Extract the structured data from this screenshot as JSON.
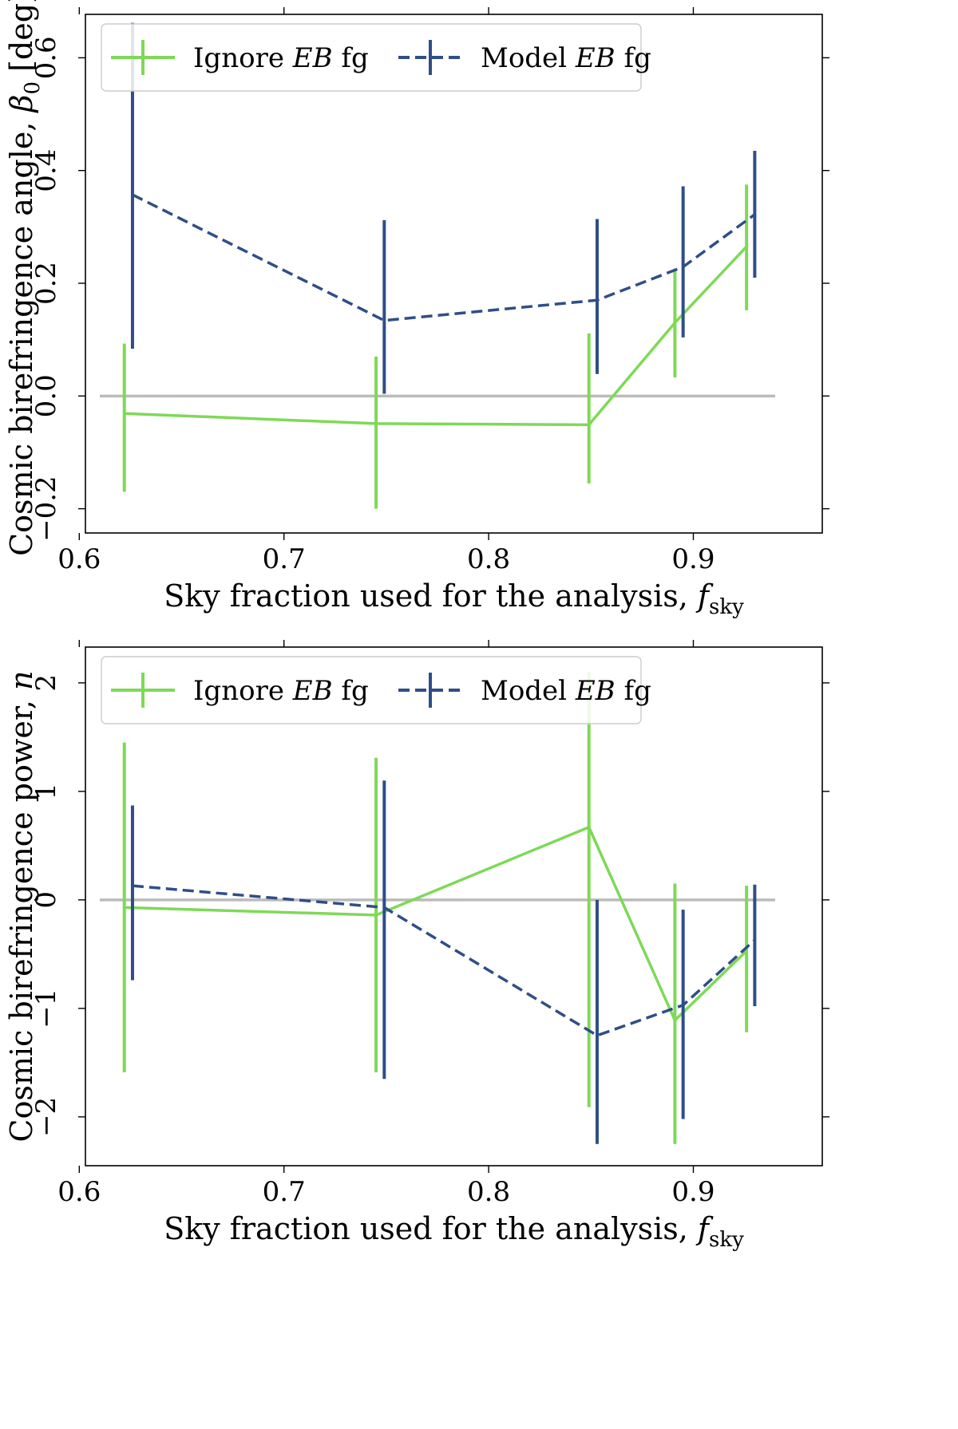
{
  "chart_data": [
    {
      "type": "line",
      "ylabel_pre": "Cosmic birefringence angle, ",
      "ylabel_sym": "β",
      "ylabel_sub": "0",
      "ylabel_post": " [deg]",
      "xlabel_pre": "Sky fraction used for the analysis, ",
      "xlabel_sym": "f",
      "xlabel_sub": "sky",
      "xlim": [
        0.603,
        0.963
      ],
      "ylim": [
        -0.243,
        0.677
      ],
      "xticks": [
        0.6,
        0.7,
        0.8,
        0.9
      ],
      "xtick_labels": [
        "0.6",
        "0.7",
        "0.8",
        "0.9"
      ],
      "yticks": [
        -0.2,
        0.0,
        0.2,
        0.4,
        0.6
      ],
      "ytick_labels": [
        "−0.2",
        "0.0",
        "0.2",
        "0.4",
        "0.6"
      ],
      "reference_line": {
        "y": 0.0,
        "x_range": [
          0.61,
          0.94
        ],
        "color": "#bbbbbb"
      },
      "legend_position": "top-left",
      "series": [
        {
          "name_pre": "Ignore ",
          "name_em": "EB",
          "name_post": " fg",
          "color": "#7ed957",
          "linestyle": "solid",
          "x": [
            0.622,
            0.745,
            0.849,
            0.891,
            0.926
          ],
          "y": [
            -0.031,
            -0.049,
            -0.051,
            0.13,
            0.265
          ],
          "yerr_low": [
            0.139,
            0.151,
            0.104,
            0.097,
            0.113
          ],
          "yerr_high": [
            0.124,
            0.119,
            0.162,
            0.096,
            0.11
          ]
        },
        {
          "name_pre": "Model ",
          "name_em": "EB",
          "name_post": " fg",
          "color": "#2f4e87",
          "linestyle": "dashed",
          "x": [
            0.626,
            0.749,
            0.853,
            0.895,
            0.93
          ],
          "y": [
            0.357,
            0.134,
            0.17,
            0.229,
            0.322
          ],
          "yerr_low": [
            0.273,
            0.13,
            0.131,
            0.125,
            0.112
          ],
          "yerr_high": [
            0.305,
            0.178,
            0.144,
            0.143,
            0.113
          ]
        }
      ]
    },
    {
      "type": "line",
      "ylabel_pre": "Cosmic birefringence power, ",
      "ylabel_sym": "n",
      "ylabel_sub": "",
      "ylabel_post": "",
      "xlabel_pre": "Sky fraction used for the analysis, ",
      "xlabel_sym": "f",
      "xlabel_sub": "sky",
      "xlim": [
        0.603,
        0.963
      ],
      "ylim": [
        -2.45,
        2.33
      ],
      "xticks": [
        0.6,
        0.7,
        0.8,
        0.9
      ],
      "xtick_labels": [
        "0.6",
        "0.7",
        "0.8",
        "0.9"
      ],
      "yticks": [
        -2,
        -1,
        0,
        1,
        2
      ],
      "ytick_labels": [
        "−2",
        "−1",
        "0",
        "1",
        "2"
      ],
      "reference_line": {
        "y": 0.0,
        "x_range": [
          0.61,
          0.94
        ],
        "color": "#bbbbbb"
      },
      "legend_position": "top-left",
      "series": [
        {
          "name_pre": "Ignore ",
          "name_em": "EB",
          "name_post": " fg",
          "color": "#7ed957",
          "linestyle": "solid",
          "x": [
            0.622,
            0.745,
            0.849,
            0.891,
            0.926
          ],
          "y": [
            -0.07,
            -0.14,
            0.67,
            -1.11,
            -0.47
          ],
          "yerr_low": [
            1.52,
            1.45,
            2.58,
            1.14,
            0.75
          ],
          "yerr_high": [
            1.52,
            1.45,
            1.43,
            1.26,
            0.6
          ]
        },
        {
          "name_pre": "Model ",
          "name_em": "EB",
          "name_post": " fg",
          "color": "#2f4e87",
          "linestyle": "dashed",
          "x": [
            0.626,
            0.749,
            0.853,
            0.895,
            0.93
          ],
          "y": [
            0.13,
            -0.07,
            -1.25,
            -0.97,
            -0.37
          ],
          "yerr_low": [
            0.87,
            1.58,
            1.0,
            1.05,
            0.61
          ],
          "yerr_high": [
            0.74,
            1.17,
            1.25,
            0.88,
            0.51
          ]
        }
      ]
    }
  ]
}
